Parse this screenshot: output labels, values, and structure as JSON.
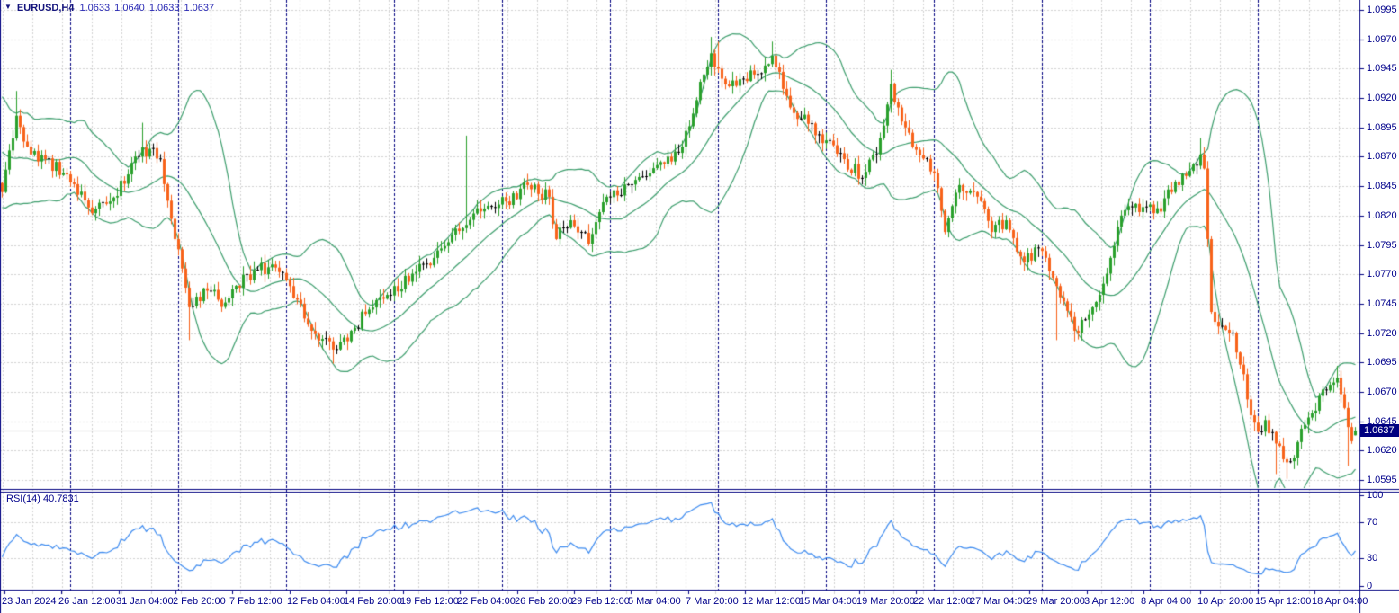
{
  "header": {
    "symbol": "EURUSD,H4",
    "dropdown_glyph": "▼",
    "quote": {
      "open": "1.0633",
      "high": "1.0640",
      "low": "1.0633",
      "close": "1.0637"
    }
  },
  "rsi_panel": {
    "label": "RSI(14) 40.7831",
    "indicator_name": "RSI",
    "period": 14,
    "value": 40.7831,
    "axis_labels": [
      "100",
      "70",
      "30",
      "0"
    ],
    "axis_values": [
      100,
      70,
      30,
      0
    ],
    "dashed_levels": [
      70,
      30
    ]
  },
  "price_axis": {
    "current_price": "1.0637",
    "labels": [
      "1.0995",
      "1.0970",
      "1.0945",
      "1.0920",
      "1.0895",
      "1.0870",
      "1.0845",
      "1.0820",
      "1.0795",
      "1.0770",
      "1.0745",
      "1.0720",
      "1.0695",
      "1.0670",
      "1.0645",
      "1.0620",
      "1.0595"
    ]
  },
  "time_axis": {
    "labels": [
      "23 Jan 2024",
      "26 Jan 12:00",
      "31 Jan 04:00",
      "2 Feb 20:00",
      "7 Feb 12:00",
      "12 Feb 04:00",
      "14 Feb 20:00",
      "19 Feb 12:00",
      "22 Feb 04:00",
      "26 Feb 20:00",
      "29 Feb 12:00",
      "5 Mar 04:00",
      "7 Mar 20:00",
      "12 Mar 12:00",
      "15 Mar 04:00",
      "19 Mar 20:00",
      "22 Mar 12:00",
      "27 Mar 04:00",
      "29 Mar 20:00",
      "3 Apr 12:00",
      "8 Apr 04:00",
      "10 Apr 20:00",
      "15 Apr 12:00",
      "18 Apr 04:00"
    ]
  },
  "colors": {
    "background": "#ffffff",
    "grid": "#d2d2d2",
    "period_separator": "#000080",
    "axis_line": "#000080",
    "axis_text": "#00008b",
    "symbol_text": "#15157d",
    "quote_text": "#2a2ab5",
    "up_candle": "#2aa02c",
    "down_candle": "#f8621a",
    "doji_candle": "#000000",
    "bollinger": "#3d9e6d",
    "rsi_line": "#3d8bf0",
    "bid_line": "#c6c6c6",
    "price_tag_bg": "#000080",
    "price_tag_text": "#ffffff"
  },
  "chart_data": {
    "type": "candlestick",
    "title": "EURUSD,H4 1.0633 1.0640 1.0633 1.0637",
    "symbol": "EURUSD",
    "timeframe": "H4",
    "legend_position": "none",
    "grid": true,
    "price_axis_range": [
      1.0588,
      1.1003
    ],
    "price_tick_step": 0.0025,
    "rsi_axis_range": [
      0,
      100
    ],
    "bar_count": 377,
    "current_bar": {
      "open": 1.0633,
      "high": 1.064,
      "low": 1.0633,
      "close": 1.0637
    },
    "current_bid": 1.0637,
    "indicators": [
      {
        "name": "Bollinger Bands",
        "period": 20,
        "deviation": 2
      },
      {
        "name": "RSI",
        "period": 14,
        "value": 40.7831
      }
    ],
    "close_path_anchors": [
      [
        0,
        1.084
      ],
      [
        4,
        1.0905
      ],
      [
        8,
        1.0872
      ],
      [
        12,
        1.0868
      ],
      [
        18,
        1.0855
      ],
      [
        25,
        1.0822
      ],
      [
        30,
        1.0832
      ],
      [
        35,
        1.0855
      ],
      [
        39,
        1.0878
      ],
      [
        44,
        1.0868
      ],
      [
        48,
        1.08
      ],
      [
        52,
        1.0742
      ],
      [
        57,
        1.0756
      ],
      [
        62,
        1.0746
      ],
      [
        68,
        1.077
      ],
      [
        74,
        1.0776
      ],
      [
        80,
        1.076
      ],
      [
        86,
        1.0722
      ],
      [
        92,
        1.0706
      ],
      [
        97,
        1.0722
      ],
      [
        102,
        1.074
      ],
      [
        108,
        1.0752
      ],
      [
        115,
        1.0772
      ],
      [
        122,
        1.0792
      ],
      [
        129,
        1.0812
      ],
      [
        134,
        1.0826
      ],
      [
        140,
        1.0832
      ],
      [
        146,
        1.0846
      ],
      [
        152,
        1.0836
      ],
      [
        154,
        1.08
      ],
      [
        158,
        1.0816
      ],
      [
        163,
        1.0796
      ],
      [
        168,
        1.0836
      ],
      [
        174,
        1.0846
      ],
      [
        180,
        1.0856
      ],
      [
        186,
        1.0866
      ],
      [
        191,
        1.0896
      ],
      [
        195,
        1.094
      ],
      [
        197,
        1.0958
      ],
      [
        199,
        1.0945
      ],
      [
        202,
        1.093
      ],
      [
        205,
        1.0936
      ],
      [
        209,
        1.094
      ],
      [
        214,
        1.0956
      ],
      [
        219,
        1.0912
      ],
      [
        224,
        1.0898
      ],
      [
        229,
        1.0884
      ],
      [
        234,
        1.0868
      ],
      [
        239,
        1.0852
      ],
      [
        243,
        1.0872
      ],
      [
        247,
        1.0932
      ],
      [
        250,
        1.09
      ],
      [
        254,
        1.0876
      ],
      [
        259,
        1.0856
      ],
      [
        262,
        1.0806
      ],
      [
        266,
        1.0846
      ],
      [
        270,
        1.084
      ],
      [
        275,
        1.0806
      ],
      [
        279,
        1.0816
      ],
      [
        284,
        1.078
      ],
      [
        288,
        1.0792
      ],
      [
        293,
        1.076
      ],
      [
        298,
        1.0722
      ],
      [
        302,
        1.0736
      ],
      [
        306,
        1.0762
      ],
      [
        311,
        1.082
      ],
      [
        315,
        1.083
      ],
      [
        320,
        1.0822
      ],
      [
        325,
        1.084
      ],
      [
        330,
        1.0858
      ],
      [
        333,
        1.0872
      ],
      [
        334,
        1.086
      ],
      [
        335,
        1.08
      ],
      [
        336,
        1.0738
      ],
      [
        339,
        1.0726
      ],
      [
        342,
        1.072
      ],
      [
        345,
        1.0685
      ],
      [
        347,
        1.065
      ],
      [
        349,
        1.0636
      ],
      [
        351,
        1.0646
      ],
      [
        354,
        1.0626
      ],
      [
        357,
        1.061
      ],
      [
        359,
        1.0614
      ],
      [
        362,
        1.0642
      ],
      [
        365,
        1.0654
      ],
      [
        367,
        1.0672
      ],
      [
        369,
        1.0676
      ],
      [
        371,
        1.0682
      ],
      [
        372,
        1.0668
      ],
      [
        374,
        1.064
      ],
      [
        375,
        1.0628
      ],
      [
        376,
        1.0637
      ]
    ],
    "wick_spikes": [
      {
        "i": 4,
        "high": 1.0926
      },
      {
        "i": 39,
        "high": 1.0899
      },
      {
        "i": 52,
        "low": 1.0714
      },
      {
        "i": 92,
        "low": 1.0694
      },
      {
        "i": 129,
        "high": 1.0888
      },
      {
        "i": 197,
        "high": 1.0972
      },
      {
        "i": 199,
        "high": 1.0968
      },
      {
        "i": 214,
        "high": 1.0968
      },
      {
        "i": 247,
        "high": 1.0944
      },
      {
        "i": 293,
        "low": 1.0714
      },
      {
        "i": 298,
        "low": 1.0713
      },
      {
        "i": 333,
        "high": 1.0886
      },
      {
        "i": 354,
        "low": 1.06
      },
      {
        "i": 357,
        "low": 1.0596
      },
      {
        "i": 371,
        "high": 1.0692
      },
      {
        "i": 374,
        "low": 1.0607
      }
    ],
    "seed": 20240418
  }
}
